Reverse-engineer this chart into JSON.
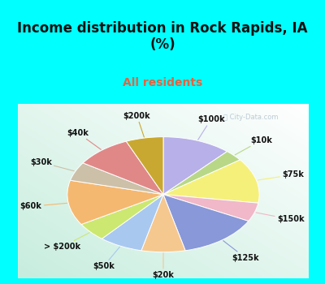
{
  "title": "Income distribution in Rock Rapids, IA\n(%)",
  "subtitle": "All residents",
  "title_color": "#111111",
  "subtitle_color": "#dd6644",
  "bg_outer": "#00ffff",
  "watermark": "ⓘ City-Data.com",
  "labels": [
    "$100k",
    "$10k",
    "$75k",
    "$150k",
    "$125k",
    "$20k",
    "$50k",
    "> $200k",
    "$60k",
    "$30k",
    "$40k",
    "$200k"
  ],
  "values": [
    11,
    3,
    12,
    5,
    13,
    7,
    7,
    5,
    12,
    5,
    9,
    6
  ],
  "colors": [
    "#b8b0e8",
    "#b8d888",
    "#f5f07a",
    "#f0b8c8",
    "#8898d8",
    "#f5c890",
    "#a8c8f0",
    "#cce870",
    "#f5b870",
    "#ccc0a8",
    "#e08888",
    "#c8a830"
  ],
  "label_fontsize": 7,
  "title_fontsize": 12,
  "subtitle_fontsize": 10
}
